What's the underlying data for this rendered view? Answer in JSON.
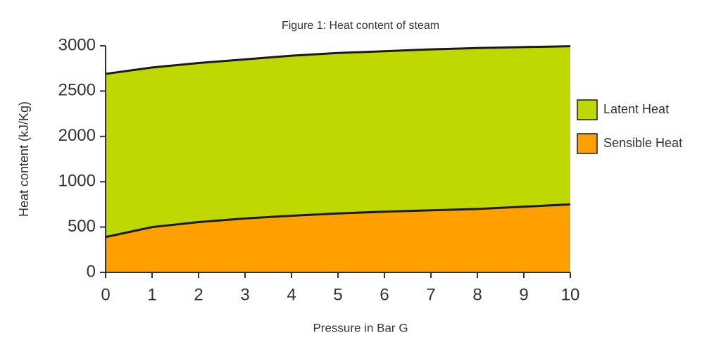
{
  "chart_data": {
    "type": "area",
    "title": "Figure 1: Heat content of steam",
    "x_label": "Pressure in Bar G",
    "y_label": "Heat content (kJ/Kg)",
    "x": [
      0,
      1,
      2,
      3,
      4,
      5,
      6,
      7,
      8,
      9,
      10
    ],
    "series": [
      {
        "name": "Sensible Heat",
        "color": "#ff9f00",
        "values": [
          390,
          500,
          555,
          595,
          625,
          650,
          670,
          685,
          700,
          725,
          750
        ]
      },
      {
        "name": "Latent Heat",
        "color": "#bfd800",
        "values": [
          2300,
          2260,
          2255,
          2255,
          2265,
          2270,
          2270,
          2275,
          2275,
          2260,
          2245
        ]
      }
    ],
    "stacked": true,
    "xlim": [
      0,
      10
    ],
    "xticks": [
      0,
      1,
      2,
      3,
      4,
      5,
      6,
      7,
      8,
      9,
      10
    ],
    "ylim": [
      0,
      3000
    ],
    "yticks": [
      0,
      500,
      1000,
      2000,
      2500,
      3000
    ],
    "legend": "right"
  }
}
